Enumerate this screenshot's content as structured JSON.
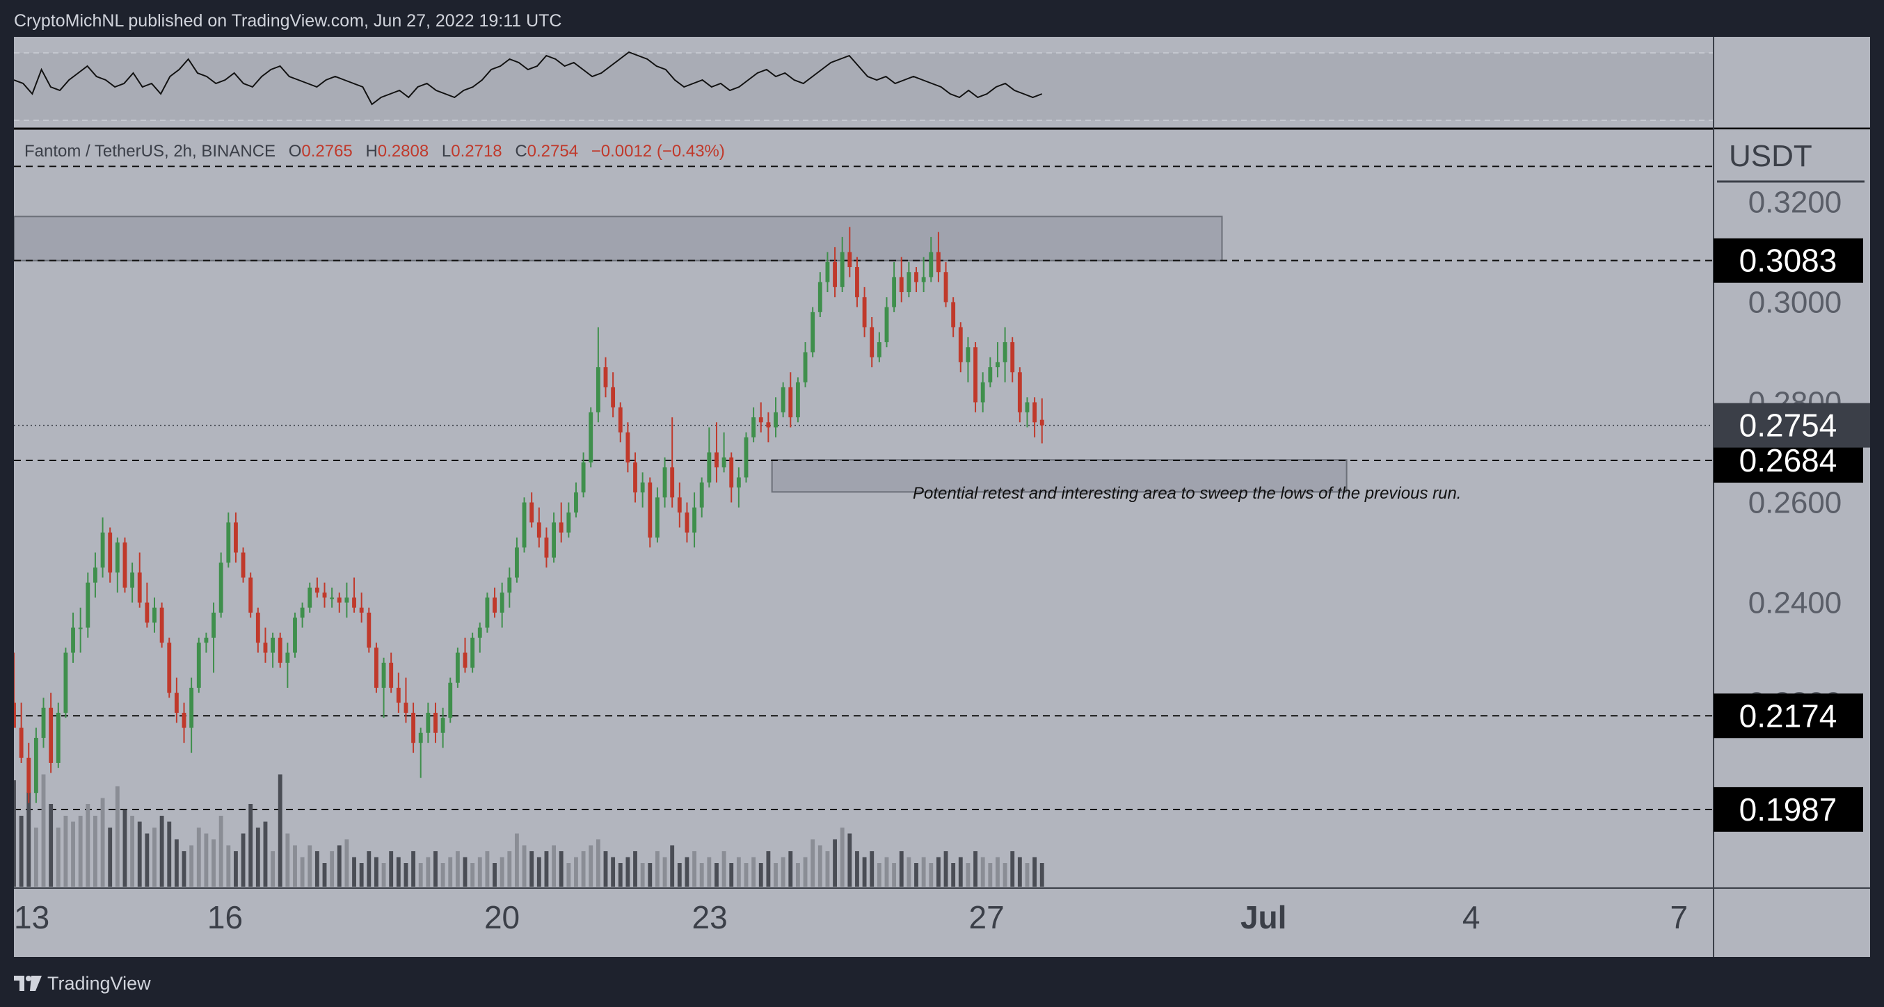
{
  "header": {
    "published_line": "CryptoMichNL published on TradingView.com, Jun 27, 2022 19:11 UTC"
  },
  "footer": {
    "brand": "TradingView",
    "logo_icon": "tradingview-logo-icon"
  },
  "colors": {
    "background": "#1e222d",
    "pane": "#b2b5be",
    "up": "#3f8f4c",
    "down": "#c0392b",
    "label_bg": "#000000",
    "label_text": "#ffffff",
    "zone_fill": "#9a9ea8"
  },
  "chart_data": {
    "type": "candlestick",
    "symbol_line": {
      "name": "Fantom / TetherUS, 2h, BINANCE",
      "o_label": "O",
      "o": "0.2765",
      "h_label": "H",
      "h": "0.2808",
      "l_label": "L",
      "l": "0.2718",
      "c_label": "C",
      "c": "0.2754",
      "change": "−0.0012 (−0.43%)"
    },
    "y_axis": {
      "unit": "USDT",
      "ticks": [
        {
          "value": 0.32,
          "label": "0.3200"
        },
        {
          "value": 0.3,
          "label": "0.3000"
        },
        {
          "value": 0.28,
          "label": "0.2800"
        },
        {
          "value": 0.26,
          "label": "0.2600"
        },
        {
          "value": 0.24,
          "label": "0.2400"
        },
        {
          "value": 0.22,
          "label": "0.2200"
        }
      ],
      "range": [
        0.183,
        0.3345
      ]
    },
    "x_axis": {
      "ticks": [
        {
          "day": 13,
          "label": "13"
        },
        {
          "day": 16,
          "label": "16"
        },
        {
          "day": 20,
          "label": "20"
        },
        {
          "day": 23,
          "label": "23"
        },
        {
          "day": 27,
          "label": "27"
        },
        {
          "day": 31,
          "label": "Jul"
        },
        {
          "day": 34,
          "label": "4"
        },
        {
          "day": 37,
          "label": "7"
        }
      ],
      "day_range": [
        12.95,
        37.5
      ],
      "last_candle_day": 27.8
    },
    "levels": [
      {
        "value": 0.3083,
        "label": "0.3083"
      },
      {
        "value": 0.2684,
        "label": "0.2684"
      },
      {
        "value": 0.2174,
        "label": "0.2174"
      },
      {
        "value": 0.1987,
        "label": "0.1987"
      },
      {
        "value": 0.3271,
        "label": ""
      }
    ],
    "last_price": {
      "value": 0.2754,
      "label": "0.2754"
    },
    "zones": [
      {
        "day_from": 12.95,
        "day_to": 30.4,
        "top": 0.3171,
        "bottom": 0.3083
      },
      {
        "day_from": 23.9,
        "day_to": 32.2,
        "top": 0.2685,
        "bottom": 0.2621
      }
    ],
    "annotation": "Potential retest and interesting area to sweep the lows of the previous run.",
    "candles": [
      [
        0.22,
        0.23,
        0.215,
        0.215
      ],
      [
        0.215,
        0.22,
        0.208,
        0.209
      ],
      [
        0.209,
        0.212,
        0.2,
        0.202
      ],
      [
        0.202,
        0.215,
        0.2,
        0.213
      ],
      [
        0.213,
        0.221,
        0.211,
        0.219
      ],
      [
        0.219,
        0.222,
        0.206,
        0.208
      ],
      [
        0.208,
        0.22,
        0.207,
        0.218
      ],
      [
        0.218,
        0.231,
        0.217,
        0.23
      ],
      [
        0.23,
        0.238,
        0.228,
        0.235
      ],
      [
        0.235,
        0.239,
        0.23,
        0.235
      ],
      [
        0.235,
        0.246,
        0.233,
        0.244
      ],
      [
        0.244,
        0.25,
        0.241,
        0.247
      ],
      [
        0.247,
        0.257,
        0.245,
        0.254
      ],
      [
        0.254,
        0.255,
        0.244,
        0.246
      ],
      [
        0.246,
        0.253,
        0.242,
        0.252
      ],
      [
        0.252,
        0.253,
        0.242,
        0.243
      ],
      [
        0.243,
        0.248,
        0.24,
        0.246
      ],
      [
        0.246,
        0.25,
        0.239,
        0.24
      ],
      [
        0.24,
        0.244,
        0.235,
        0.236
      ],
      [
        0.236,
        0.241,
        0.234,
        0.239
      ],
      [
        0.239,
        0.24,
        0.231,
        0.232
      ],
      [
        0.232,
        0.233,
        0.221,
        0.222
      ],
      [
        0.222,
        0.225,
        0.216,
        0.218
      ],
      [
        0.218,
        0.22,
        0.212,
        0.215
      ],
      [
        0.215,
        0.225,
        0.21,
        0.223
      ],
      [
        0.223,
        0.233,
        0.222,
        0.232
      ],
      [
        0.232,
        0.234,
        0.23,
        0.233
      ],
      [
        0.233,
        0.24,
        0.226,
        0.238
      ],
      [
        0.238,
        0.25,
        0.237,
        0.248
      ],
      [
        0.248,
        0.258,
        0.247,
        0.256
      ],
      [
        0.256,
        0.258,
        0.248,
        0.25
      ],
      [
        0.25,
        0.251,
        0.244,
        0.245
      ],
      [
        0.245,
        0.246,
        0.237,
        0.238
      ],
      [
        0.238,
        0.239,
        0.23,
        0.232
      ],
      [
        0.232,
        0.235,
        0.228,
        0.23
      ],
      [
        0.23,
        0.234,
        0.227,
        0.233
      ],
      [
        0.233,
        0.234,
        0.227,
        0.228
      ],
      [
        0.228,
        0.232,
        0.223,
        0.23
      ],
      [
        0.23,
        0.238,
        0.229,
        0.237
      ],
      [
        0.237,
        0.24,
        0.235,
        0.239
      ],
      [
        0.239,
        0.244,
        0.238,
        0.243
      ],
      [
        0.243,
        0.245,
        0.241,
        0.242
      ],
      [
        0.242,
        0.244,
        0.239,
        0.241
      ],
      [
        0.241,
        0.243,
        0.239,
        0.241
      ],
      [
        0.241,
        0.242,
        0.238,
        0.24
      ],
      [
        0.24,
        0.244,
        0.237,
        0.241
      ],
      [
        0.241,
        0.245,
        0.238,
        0.239
      ],
      [
        0.239,
        0.242,
        0.236,
        0.238
      ],
      [
        0.238,
        0.239,
        0.23,
        0.231
      ],
      [
        0.231,
        0.232,
        0.222,
        0.223
      ],
      [
        0.223,
        0.229,
        0.217,
        0.228
      ],
      [
        0.228,
        0.23,
        0.222,
        0.223
      ],
      [
        0.223,
        0.226,
        0.218,
        0.22
      ],
      [
        0.22,
        0.225,
        0.216,
        0.218
      ],
      [
        0.218,
        0.22,
        0.21,
        0.212
      ],
      [
        0.212,
        0.215,
        0.205,
        0.214
      ],
      [
        0.214,
        0.22,
        0.212,
        0.218
      ],
      [
        0.218,
        0.22,
        0.212,
        0.214
      ],
      [
        0.214,
        0.219,
        0.211,
        0.217
      ],
      [
        0.217,
        0.225,
        0.216,
        0.224
      ],
      [
        0.224,
        0.231,
        0.223,
        0.23
      ],
      [
        0.23,
        0.233,
        0.226,
        0.227
      ],
      [
        0.227,
        0.234,
        0.226,
        0.233
      ],
      [
        0.233,
        0.236,
        0.23,
        0.235
      ],
      [
        0.235,
        0.242,
        0.234,
        0.241
      ],
      [
        0.241,
        0.243,
        0.237,
        0.238
      ],
      [
        0.238,
        0.244,
        0.235,
        0.242
      ],
      [
        0.242,
        0.247,
        0.239,
        0.245
      ],
      [
        0.245,
        0.253,
        0.244,
        0.251
      ],
      [
        0.251,
        0.261,
        0.25,
        0.26
      ],
      [
        0.26,
        0.262,
        0.255,
        0.256
      ],
      [
        0.256,
        0.259,
        0.251,
        0.253
      ],
      [
        0.253,
        0.255,
        0.247,
        0.249
      ],
      [
        0.249,
        0.258,
        0.248,
        0.256
      ],
      [
        0.256,
        0.26,
        0.252,
        0.254
      ],
      [
        0.254,
        0.26,
        0.253,
        0.258
      ],
      [
        0.258,
        0.264,
        0.257,
        0.262
      ],
      [
        0.262,
        0.27,
        0.261,
        0.268
      ],
      [
        0.268,
        0.279,
        0.267,
        0.278
      ],
      [
        0.278,
        0.295,
        0.276,
        0.287
      ],
      [
        0.287,
        0.289,
        0.281,
        0.283
      ],
      [
        0.283,
        0.286,
        0.277,
        0.279
      ],
      [
        0.279,
        0.28,
        0.272,
        0.274
      ],
      [
        0.274,
        0.276,
        0.266,
        0.268
      ],
      [
        0.268,
        0.27,
        0.26,
        0.262
      ],
      [
        0.262,
        0.266,
        0.259,
        0.264
      ],
      [
        0.264,
        0.265,
        0.251,
        0.253
      ],
      [
        0.253,
        0.263,
        0.252,
        0.261
      ],
      [
        0.261,
        0.269,
        0.259,
        0.267
      ],
      [
        0.267,
        0.277,
        0.259,
        0.261
      ],
      [
        0.261,
        0.264,
        0.255,
        0.258
      ],
      [
        0.258,
        0.26,
        0.252,
        0.254
      ],
      [
        0.254,
        0.262,
        0.251,
        0.259
      ],
      [
        0.259,
        0.265,
        0.257,
        0.264
      ],
      [
        0.264,
        0.275,
        0.263,
        0.27
      ],
      [
        0.27,
        0.276,
        0.264,
        0.267
      ],
      [
        0.267,
        0.274,
        0.266,
        0.269
      ],
      [
        0.269,
        0.27,
        0.26,
        0.263
      ],
      [
        0.263,
        0.267,
        0.259,
        0.265
      ],
      [
        0.265,
        0.274,
        0.264,
        0.273
      ],
      [
        0.273,
        0.279,
        0.272,
        0.277
      ],
      [
        0.277,
        0.28,
        0.274,
        0.276
      ],
      [
        0.276,
        0.278,
        0.272,
        0.275
      ],
      [
        0.275,
        0.281,
        0.273,
        0.278
      ],
      [
        0.278,
        0.284,
        0.277,
        0.283
      ],
      [
        0.283,
        0.286,
        0.275,
        0.277
      ],
      [
        0.277,
        0.285,
        0.276,
        0.284
      ],
      [
        0.284,
        0.292,
        0.283,
        0.29
      ],
      [
        0.29,
        0.299,
        0.289,
        0.298
      ],
      [
        0.298,
        0.306,
        0.297,
        0.304
      ],
      [
        0.304,
        0.31,
        0.302,
        0.308
      ],
      [
        0.308,
        0.311,
        0.301,
        0.303
      ],
      [
        0.303,
        0.313,
        0.302,
        0.31
      ],
      [
        0.31,
        0.315,
        0.305,
        0.307
      ],
      [
        0.307,
        0.309,
        0.299,
        0.301
      ],
      [
        0.301,
        0.303,
        0.293,
        0.295
      ],
      [
        0.295,
        0.297,
        0.287,
        0.289
      ],
      [
        0.289,
        0.294,
        0.288,
        0.292
      ],
      [
        0.292,
        0.301,
        0.291,
        0.299
      ],
      [
        0.299,
        0.308,
        0.298,
        0.305
      ],
      [
        0.305,
        0.309,
        0.3,
        0.302
      ],
      [
        0.302,
        0.308,
        0.301,
        0.306
      ],
      [
        0.306,
        0.307,
        0.302,
        0.304
      ],
      [
        0.304,
        0.309,
        0.302,
        0.305
      ],
      [
        0.305,
        0.313,
        0.304,
        0.31
      ],
      [
        0.31,
        0.314,
        0.304,
        0.306
      ],
      [
        0.306,
        0.308,
        0.299,
        0.3
      ],
      [
        0.3,
        0.301,
        0.293,
        0.295
      ],
      [
        0.295,
        0.296,
        0.286,
        0.288
      ],
      [
        0.288,
        0.293,
        0.284,
        0.291
      ],
      [
        0.291,
        0.292,
        0.278,
        0.28
      ],
      [
        0.28,
        0.286,
        0.278,
        0.284
      ],
      [
        0.284,
        0.289,
        0.283,
        0.287
      ],
      [
        0.287,
        0.292,
        0.285,
        0.288
      ],
      [
        0.288,
        0.295,
        0.284,
        0.292
      ],
      [
        0.292,
        0.293,
        0.284,
        0.286
      ],
      [
        0.286,
        0.287,
        0.276,
        0.278
      ],
      [
        0.278,
        0.281,
        0.275,
        0.28
      ],
      [
        0.28,
        0.281,
        0.273,
        0.276
      ],
      [
        0.2765,
        0.2808,
        0.2718,
        0.2754
      ]
    ],
    "volume": [
      0.9,
      0.6,
      0.8,
      0.5,
      0.95,
      0.7,
      0.5,
      0.6,
      0.55,
      0.6,
      0.7,
      0.6,
      0.75,
      0.5,
      0.85,
      0.65,
      0.6,
      0.55,
      0.45,
      0.5,
      0.6,
      0.55,
      0.4,
      0.3,
      0.35,
      0.5,
      0.45,
      0.4,
      0.6,
      0.35,
      0.3,
      0.45,
      0.7,
      0.5,
      0.55,
      0.3,
      0.95,
      0.45,
      0.35,
      0.25,
      0.35,
      0.3,
      0.2,
      0.3,
      0.35,
      0.4,
      0.25,
      0.2,
      0.3,
      0.25,
      0.2,
      0.3,
      0.25,
      0.2,
      0.3,
      0.2,
      0.25,
      0.3,
      0.2,
      0.25,
      0.3,
      0.25,
      0.2,
      0.25,
      0.3,
      0.2,
      0.25,
      0.3,
      0.45,
      0.35,
      0.3,
      0.25,
      0.3,
      0.35,
      0.3,
      0.2,
      0.25,
      0.3,
      0.35,
      0.4,
      0.3,
      0.25,
      0.2,
      0.25,
      0.3,
      0.2,
      0.2,
      0.3,
      0.25,
      0.35,
      0.2,
      0.25,
      0.3,
      0.2,
      0.25,
      0.2,
      0.3,
      0.2,
      0.25,
      0.2,
      0.25,
      0.2,
      0.3,
      0.2,
      0.25,
      0.3,
      0.2,
      0.25,
      0.4,
      0.35,
      0.3,
      0.4,
      0.5,
      0.45,
      0.3,
      0.25,
      0.3,
      0.2,
      0.25,
      0.2,
      0.3,
      0.25,
      0.2,
      0.25,
      0.2,
      0.25,
      0.3,
      0.2,
      0.25,
      0.2,
      0.3,
      0.25,
      0.2,
      0.25,
      0.2,
      0.3,
      0.25,
      0.2,
      0.25,
      0.2
    ],
    "indicator_line": [
      0.55,
      0.5,
      0.35,
      0.7,
      0.45,
      0.4,
      0.55,
      0.65,
      0.75,
      0.6,
      0.55,
      0.45,
      0.5,
      0.65,
      0.45,
      0.5,
      0.35,
      0.6,
      0.7,
      0.85,
      0.65,
      0.6,
      0.5,
      0.55,
      0.65,
      0.5,
      0.45,
      0.6,
      0.7,
      0.75,
      0.6,
      0.55,
      0.5,
      0.45,
      0.55,
      0.6,
      0.55,
      0.5,
      0.45,
      0.2,
      0.3,
      0.35,
      0.4,
      0.3,
      0.45,
      0.5,
      0.4,
      0.35,
      0.3,
      0.4,
      0.45,
      0.55,
      0.7,
      0.75,
      0.85,
      0.8,
      0.7,
      0.75,
      0.9,
      0.85,
      0.75,
      0.8,
      0.7,
      0.6,
      0.65,
      0.75,
      0.85,
      0.95,
      0.9,
      0.85,
      0.75,
      0.7,
      0.55,
      0.45,
      0.5,
      0.55,
      0.45,
      0.5,
      0.4,
      0.45,
      0.55,
      0.65,
      0.7,
      0.6,
      0.65,
      0.55,
      0.5,
      0.6,
      0.7,
      0.8,
      0.85,
      0.9,
      0.75,
      0.6,
      0.55,
      0.6,
      0.5,
      0.55,
      0.6,
      0.55,
      0.5,
      0.45,
      0.35,
      0.3,
      0.4,
      0.3,
      0.35,
      0.45,
      0.5,
      0.4,
      0.35,
      0.3,
      0.35
    ]
  }
}
